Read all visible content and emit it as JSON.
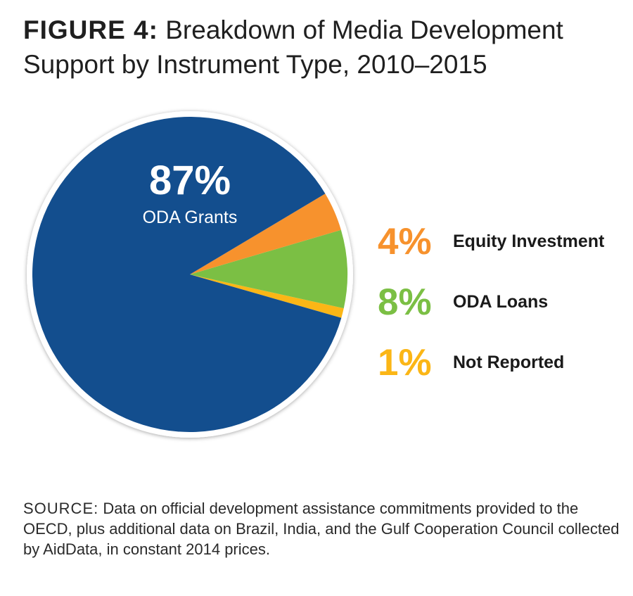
{
  "title": {
    "figure_label": "FIGURE 4:",
    "text_line1": "Breakdown of Media Development",
    "text_line2": "Support by Instrument Type, 2010–2015"
  },
  "chart_data": {
    "type": "pie",
    "slices": [
      {
        "label": "ODA Grants",
        "value": 87,
        "value_label": "87%",
        "color": "#134e8e"
      },
      {
        "label": "Equity Investment",
        "value": 4,
        "value_label": "4%",
        "color": "#f7922d"
      },
      {
        "label": "ODA Loans",
        "value": 8,
        "value_label": "8%",
        "color": "#7bbf44"
      },
      {
        "label": "Not Reported",
        "value": 1,
        "value_label": "1%",
        "color": "#fbb616"
      }
    ]
  },
  "source": {
    "label": "SOURCE:",
    "text": "Data on official development assistance commitments provided to the OECD, plus additional data on Brazil, India, and the Gulf Cooperation Council collected by AidData, in constant 2014 prices."
  }
}
